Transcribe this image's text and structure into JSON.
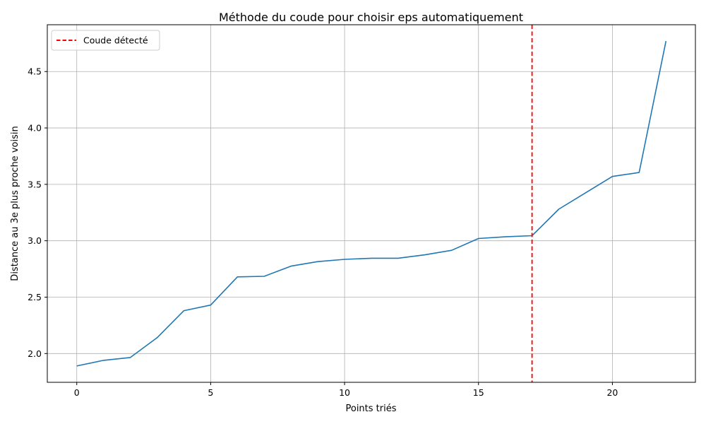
{
  "chart_data": {
    "type": "line",
    "title": "Méthode du coude pour choisir eps automatiquement",
    "xlabel": "Points triés",
    "ylabel": "Distance au 3e plus proche voisin",
    "xlim": [
      -1.1,
      23.1
    ],
    "ylim": [
      1.745,
      4.915
    ],
    "grid": true,
    "legend_position": "top-left",
    "x_ticks": [
      0,
      5,
      10,
      15,
      20
    ],
    "y_ticks": [
      2.0,
      2.5,
      3.0,
      3.5,
      4.0,
      4.5
    ],
    "x_tick_labels": [
      "0",
      "5",
      "10",
      "15",
      "20"
    ],
    "y_tick_labels": [
      "2.0",
      "2.5",
      "3.0",
      "3.5",
      "4.0",
      "4.5"
    ],
    "series": [
      {
        "color": "#1f77b4",
        "x": [
          0,
          1,
          2,
          3,
          4,
          5,
          6,
          7,
          8,
          9,
          10,
          11,
          12,
          13,
          14,
          15,
          16,
          17,
          18,
          19,
          20,
          21,
          22
        ],
        "y": [
          1.89,
          1.94,
          1.965,
          2.14,
          2.38,
          2.43,
          2.68,
          2.685,
          2.775,
          2.815,
          2.835,
          2.845,
          2.845,
          2.875,
          2.915,
          3.02,
          3.035,
          3.045,
          3.28,
          3.425,
          3.57,
          3.605,
          4.77
        ]
      }
    ],
    "annotations": [
      {
        "type": "vline",
        "x": 17,
        "color": "#ff0000",
        "style": "dashed",
        "label": "Coude détecté"
      }
    ]
  }
}
